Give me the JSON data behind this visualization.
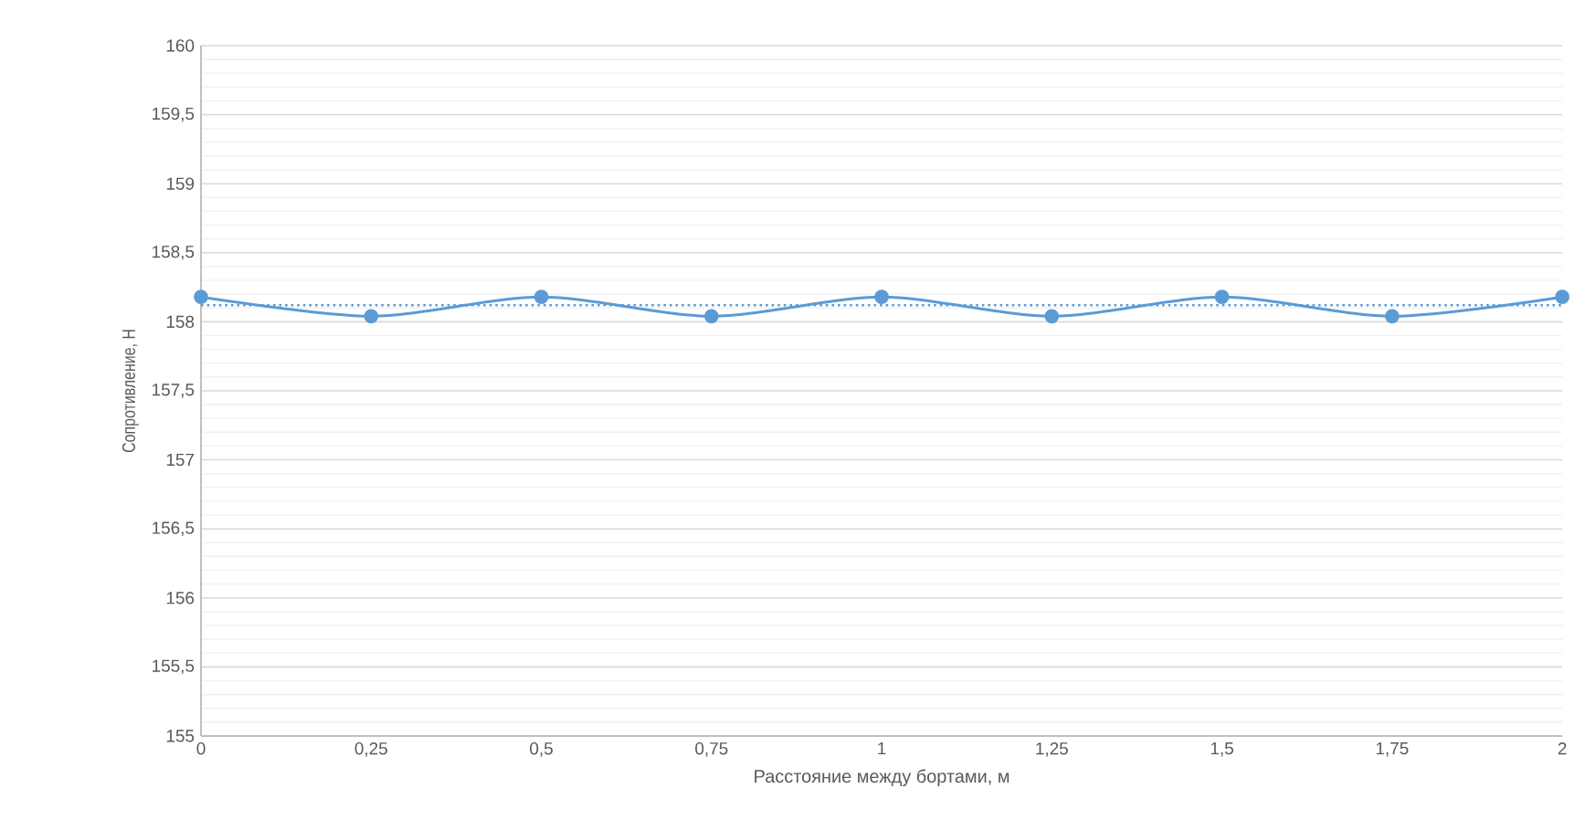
{
  "chart_data": {
    "type": "line",
    "xlabel": "Расстояние между бортами, м",
    "ylabel": "Сопротивление, Н",
    "x": [
      0,
      0.25,
      0.5,
      0.75,
      1,
      1.25,
      1.5,
      1.75,
      2
    ],
    "series": [
      {
        "color": "#5b9bd5",
        "values": [
          158.18,
          158.04,
          158.18,
          158.04,
          158.18,
          158.04,
          158.18,
          158.04,
          158.18
        ]
      }
    ],
    "xlim": [
      0,
      2
    ],
    "ylim": [
      155,
      160
    ],
    "xticks": [
      0,
      {
        "value": 0.25,
        "label": "0,25"
      },
      {
        "value": 0.5,
        "label": "0,5"
      },
      {
        "value": 0.75,
        "label": "0,75"
      },
      1,
      {
        "value": 1.25,
        "label": "1,25"
      },
      {
        "value": 1.5,
        "label": "1,5"
      },
      {
        "value": 1.75,
        "label": "1,75"
      },
      2
    ],
    "yticks": [
      155,
      {
        "value": 155.5,
        "label": "155,5"
      },
      156,
      {
        "value": 156.5,
        "label": "156,5"
      },
      157,
      {
        "value": 157.5,
        "label": "157,5"
      },
      158,
      {
        "value": 158.5,
        "label": "158,5"
      },
      159,
      {
        "value": 159.5,
        "label": "159,5"
      },
      160
    ],
    "ref_lines": [
      {
        "axis": "y",
        "value": 158.12,
        "color": "#5b9bd5",
        "line_style": "dotted"
      }
    ],
    "grid": "y",
    "marker": "circle",
    "line_style": "solid"
  }
}
